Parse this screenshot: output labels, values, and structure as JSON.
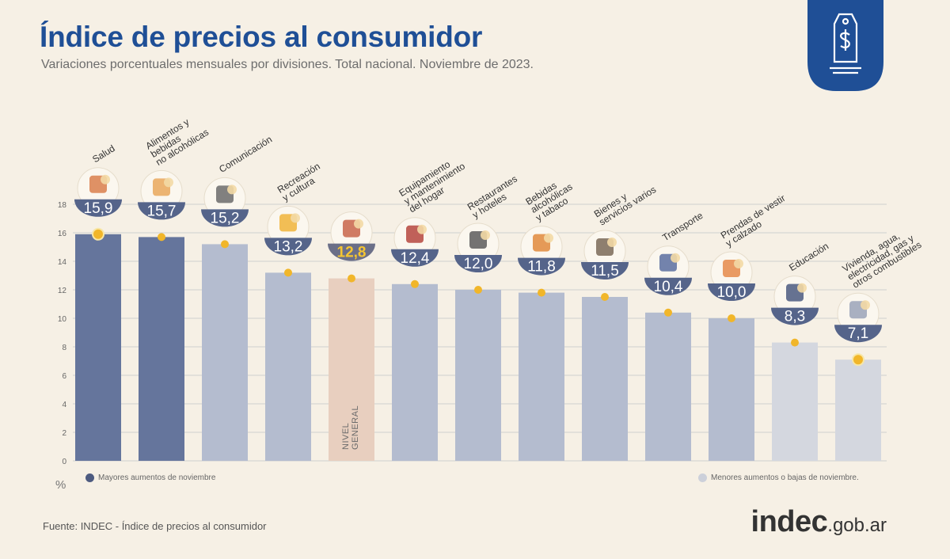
{
  "header": {
    "title": "Índice de precios al consumidor",
    "subtitle": "Variaciones porcentuales mensuales por divisiones. Total nacional. Noviembre de 2023."
  },
  "chart_data": {
    "type": "bar",
    "title": "Índice de precios al consumidor",
    "subtitle": "Variaciones porcentuales mensuales por divisiones. Total nacional. Noviembre de 2023.",
    "ylabel": "%",
    "ylim": [
      0,
      18
    ],
    "yticks": [
      0,
      2,
      4,
      6,
      8,
      10,
      12,
      14,
      16,
      18
    ],
    "grid": true,
    "categories": [
      "Salud",
      "Alimentos y bebidas no alcohólicas",
      "Comunicación",
      "Recreación y cultura",
      "Nivel general",
      "Equipamiento y mantenimiento del hogar",
      "Restaurantes y hoteles",
      "Bebidas alcohólicas y tabaco",
      "Bienes y servicios varios",
      "Transporte",
      "Prendas de vestir y calzado",
      "Educación",
      "Vivienda, agua, electricidad, gas y otros combustibles"
    ],
    "category_label_lines": [
      [
        "Salud"
      ],
      [
        "Alimentos y",
        "bebidas",
        "no alcohólicas"
      ],
      [
        "Comunicación"
      ],
      [
        "Recreación",
        "y cultura"
      ],
      [],
      [
        "Equipamiento",
        "y mantenimiento",
        "del hogar"
      ],
      [
        "Restaurantes",
        "y hoteles"
      ],
      [
        "Bebidas",
        "alcohólicas",
        "y tabaco"
      ],
      [
        "Bienes y",
        "servicios varios"
      ],
      [
        "Transporte"
      ],
      [
        "Prendas de vestir",
        "y calzado"
      ],
      [
        "Educación"
      ],
      [
        "Vivienda, agua,",
        "electricidad, gas y",
        "otros combustibles"
      ]
    ],
    "values": [
      15.9,
      15.7,
      15.2,
      13.2,
      12.8,
      12.4,
      12.0,
      11.8,
      11.5,
      10.4,
      10.0,
      8.3,
      7.1
    ],
    "value_labels": [
      "15,9",
      "15,7",
      "15,2",
      "13,2",
      "12,8",
      "12,4",
      "12,0",
      "11,8",
      "11,5",
      "10,4",
      "10,0",
      "8,3",
      "7,1"
    ],
    "groups": [
      "high",
      "high",
      "mid",
      "mid",
      "general",
      "mid",
      "mid",
      "mid",
      "mid",
      "mid",
      "mid",
      "low",
      "low"
    ],
    "icons": [
      "first-aid-kit-icon",
      "food-icon",
      "phone-icon",
      "beach-umbrella-icon",
      "mixed-basket-icon",
      "washing-machine-icon",
      "plate-cutlery-icon",
      "drinks-tobacco-icon",
      "comb-scissors-icon",
      "sube-card-icon",
      "tshirt-icon",
      "notebook-icon",
      "lightbulb-icon"
    ],
    "general_bar_label": [
      "NIVEL",
      "GENERAL"
    ],
    "colors": {
      "high": "#65759c",
      "mid": "#b4bccf",
      "low": "#d4d7df",
      "general": "#e8cfbf",
      "marker": "#f1b62a",
      "value_text": "#ffffff",
      "general_value_text": "#f5c531",
      "grid": "#cfcfcf"
    }
  },
  "legend": {
    "high_label": "Mayores aumentos de noviembre",
    "low_label": "Menores aumentos o bajas de noviembre.",
    "high_color": "#4d5b80",
    "low_color": "#ccd0da"
  },
  "footer": {
    "source": "Fuente: INDEC - Índice de precios al consumidor",
    "brand": "indec",
    "brand_domain": ".gob.ar"
  },
  "badge": {
    "icon": "price-tag-dollar-icon",
    "color": "#1f4f96"
  }
}
